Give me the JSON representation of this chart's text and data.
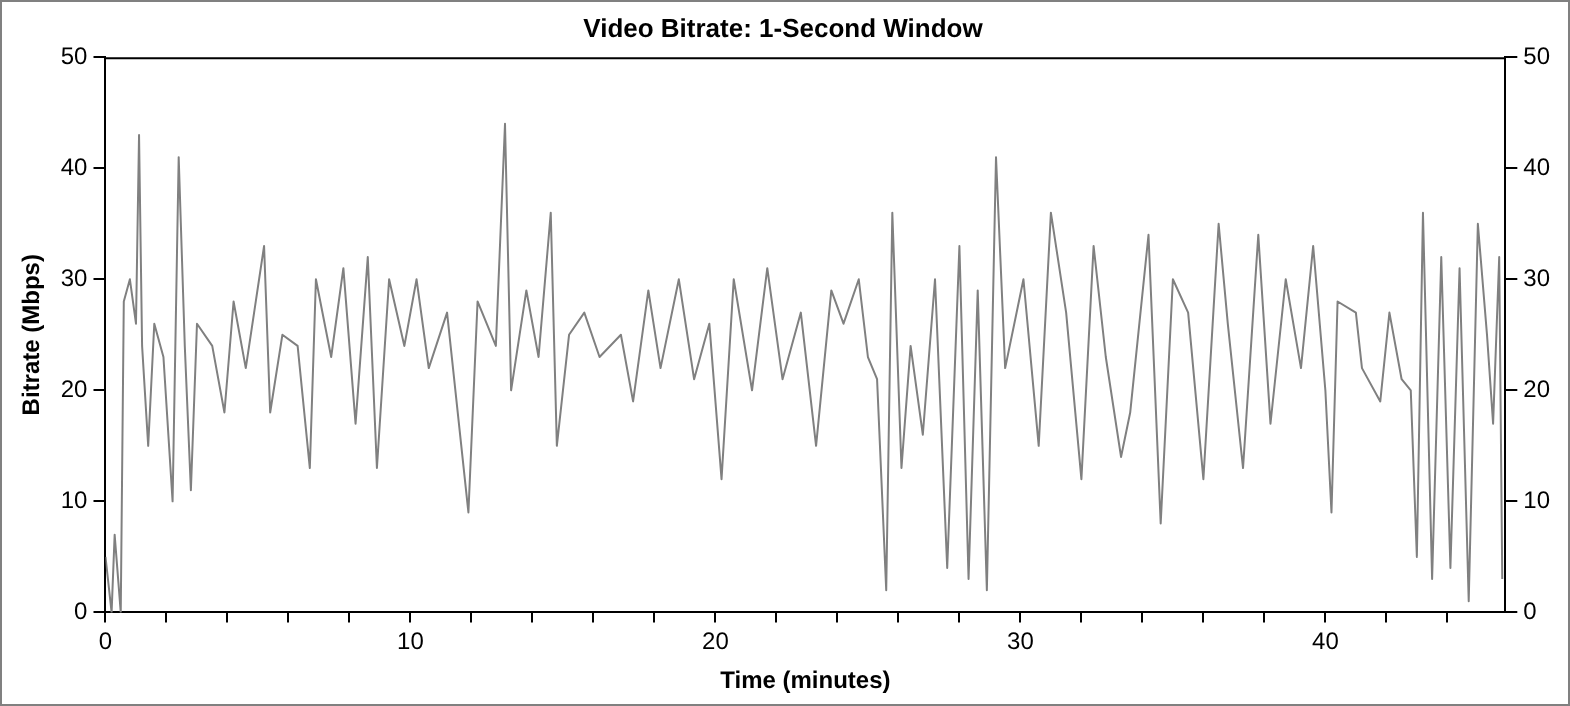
{
  "chart_data": {
    "type": "line",
    "title": "Video Bitrate: 1-Second Window",
    "xlabel": "Time (minutes)",
    "ylabel": "Bitrate (Mbps)",
    "x": [
      0,
      0.2,
      0.3,
      0.5,
      0.6,
      0.8,
      1.0,
      1.1,
      1.2,
      1.4,
      1.6,
      1.9,
      2.2,
      2.4,
      2.6,
      2.8,
      3.0,
      3.5,
      3.9,
      4.2,
      4.6,
      5.2,
      5.4,
      5.8,
      6.3,
      6.7,
      6.9,
      7.4,
      7.8,
      8.2,
      8.6,
      8.9,
      9.3,
      9.8,
      10.2,
      10.6,
      11.2,
      11.9,
      12.2,
      12.8,
      13.1,
      13.3,
      13.8,
      14.2,
      14.6,
      14.8,
      15.2,
      15.7,
      16.2,
      16.9,
      17.3,
      17.8,
      18.2,
      18.8,
      19.3,
      19.8,
      20.2,
      20.6,
      21.2,
      21.7,
      22.2,
      22.8,
      23.3,
      23.8,
      24.2,
      24.7,
      25.0,
      25.3,
      25.6,
      25.8,
      26.1,
      26.4,
      26.8,
      27.2,
      27.6,
      28.0,
      28.3,
      28.6,
      28.9,
      29.2,
      29.5,
      30.1,
      30.6,
      31.0,
      31.5,
      32.0,
      32.4,
      32.8,
      33.3,
      33.6,
      34.2,
      34.6,
      35.0,
      35.5,
      36.0,
      36.5,
      36.8,
      37.3,
      37.8,
      38.2,
      38.7,
      39.2,
      39.6,
      40.0,
      40.2,
      40.4,
      41.0,
      41.2,
      41.8,
      42.1,
      42.5,
      42.8,
      43.0,
      43.2,
      43.5,
      43.8,
      44.1,
      44.4,
      44.7,
      45.0,
      45.3,
      45.5,
      45.7,
      45.8
    ],
    "series": [
      {
        "color": "#808080",
        "values": [
          5,
          0,
          7,
          0,
          28,
          30,
          26,
          43,
          24,
          15,
          26,
          23,
          10,
          41,
          24,
          11,
          26,
          24,
          18,
          28,
          22,
          33,
          18,
          25,
          24,
          13,
          30,
          23,
          31,
          17,
          32,
          13,
          30,
          24,
          30,
          22,
          27,
          9,
          28,
          24,
          44,
          20,
          29,
          23,
          36,
          15,
          25,
          27,
          23,
          25,
          19,
          29,
          22,
          30,
          21,
          26,
          12,
          30,
          20,
          31,
          21,
          27,
          15,
          29,
          26,
          30,
          23,
          21,
          2,
          36,
          13,
          24,
          16,
          30,
          4,
          33,
          3,
          29,
          2,
          41,
          22,
          30,
          15,
          36,
          27,
          12,
          33,
          23,
          14,
          18,
          34,
          8,
          30,
          27,
          12,
          35,
          26,
          13,
          34,
          17,
          30,
          22,
          33,
          20,
          9,
          28,
          27,
          22,
          19,
          27,
          21,
          20,
          5,
          36,
          3,
          32,
          4,
          31,
          1,
          35,
          25,
          17,
          32,
          3
        ]
      }
    ],
    "xlim": [
      0,
      45.9
    ],
    "xticks": [
      0,
      {
        "value": 2,
        "label": null
      },
      {
        "value": 4,
        "label": null
      },
      {
        "value": 6,
        "label": null
      },
      {
        "value": 8,
        "label": null
      },
      10,
      {
        "value": 12,
        "label": null
      },
      {
        "value": 14,
        "label": null
      },
      {
        "value": 16,
        "label": null
      },
      {
        "value": 18,
        "label": null
      },
      20,
      {
        "value": 22,
        "label": null
      },
      {
        "value": 24,
        "label": null
      },
      {
        "value": 26,
        "label": null
      },
      {
        "value": 28,
        "label": null
      },
      30,
      {
        "value": 32,
        "label": null
      },
      {
        "value": 34,
        "label": null
      },
      {
        "value": 36,
        "label": null
      },
      {
        "value": 38,
        "label": null
      },
      40,
      {
        "value": 42,
        "label": null
      },
      {
        "value": 44,
        "label": null
      }
    ],
    "ylim": [
      0,
      50
    ],
    "yticks": [
      0,
      10,
      20,
      30,
      40,
      50
    ],
    "y2lim": [
      0,
      50
    ],
    "y2ticks": [
      0,
      10,
      20,
      30,
      40,
      50
    ],
    "grid": false,
    "legend": false,
    "marker": "none",
    "line_style": "solid"
  }
}
